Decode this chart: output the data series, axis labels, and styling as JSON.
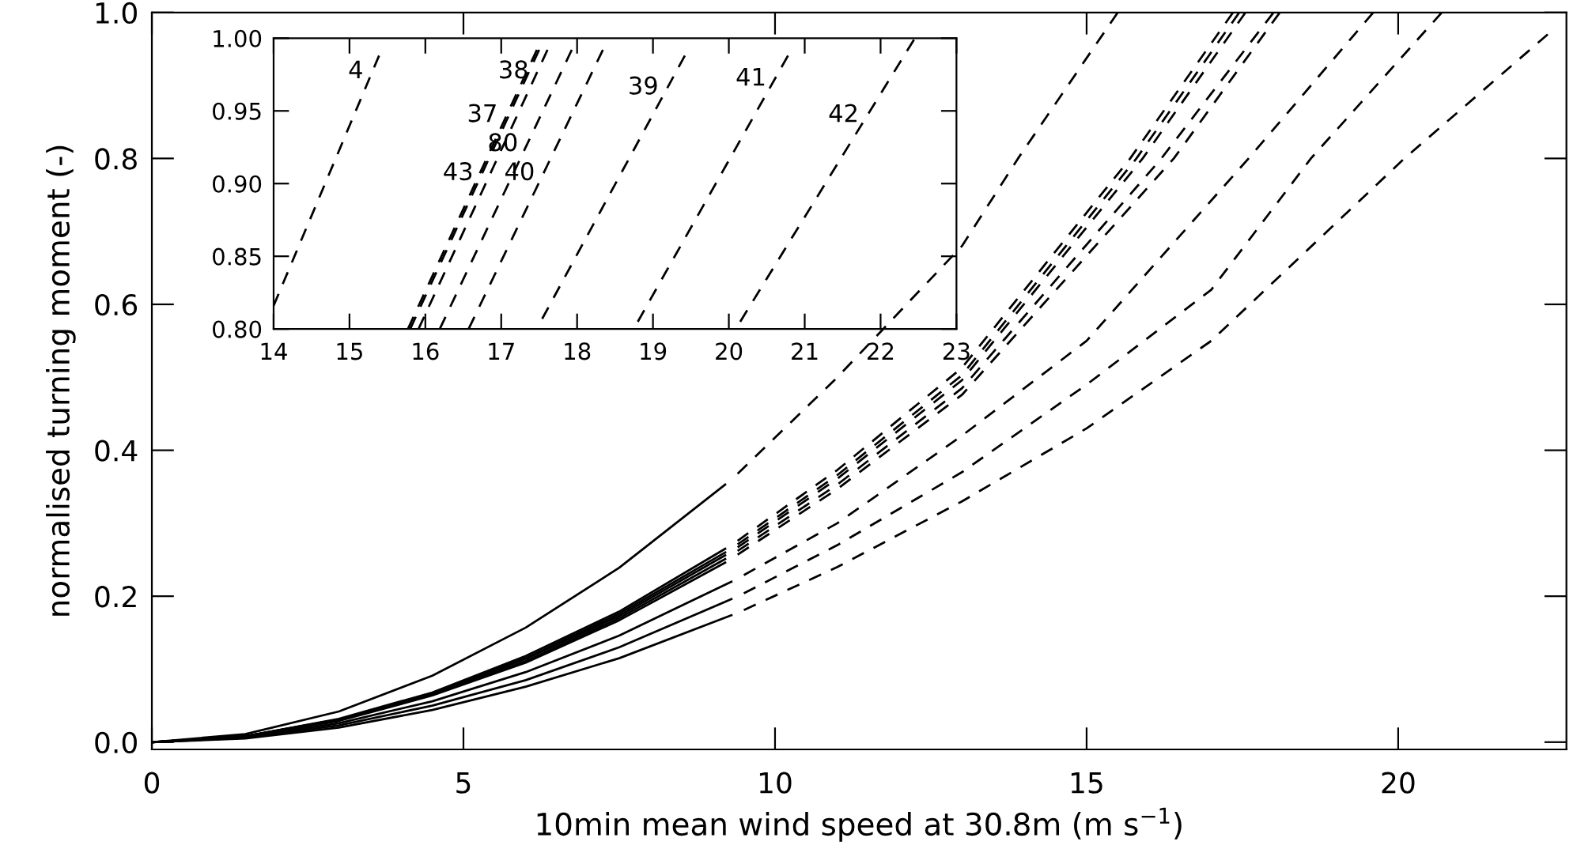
{
  "chart_data": [
    {
      "type": "line",
      "xlabel": "10min mean wind speed at 30.8m (m s$^{−1}$)",
      "ylabel": "normalised turning moment (-)",
      "xlim": [
        0,
        22.7
      ],
      "ylim": [
        -0.01,
        1.0
      ],
      "xticks": [
        0,
        5,
        10,
        15,
        20
      ],
      "yticks": [
        {
          "value": 0.0,
          "label": "0.0"
        },
        {
          "value": 0.2,
          "label": "0.2"
        },
        {
          "value": 0.4,
          "label": "0.4"
        },
        {
          "value": 0.6,
          "label": "0.6"
        },
        {
          "value": 0.8,
          "label": "0.8"
        },
        {
          "value": 1.0,
          "label": "1.0"
        }
      ],
      "tick_labels": [
        "x",
        "y"
      ],
      "series": [
        {
          "type": "line",
          "line_style": "solid",
          "color": "#000000",
          "x": [
            0,
            1.5,
            3,
            4.5,
            6,
            7.5,
            9.2
          ],
          "values": [
            0,
            0.011,
            0.042,
            0.091,
            0.157,
            0.239,
            0.353
          ]
        },
        {
          "type": "line",
          "line_style": "solid",
          "color": "#000000",
          "x": [
            0,
            1.5,
            3,
            4.5,
            6,
            7.5,
            9.2
          ],
          "values": [
            0,
            0.008,
            0.032,
            0.068,
            0.118,
            0.179,
            0.265
          ]
        },
        {
          "type": "line",
          "line_style": "solid",
          "color": "#000000",
          "x": [
            0,
            1.5,
            3,
            4.5,
            6,
            7.5,
            9.2
          ],
          "values": [
            0,
            0.008,
            0.031,
            0.067,
            0.115,
            0.176,
            0.26
          ]
        },
        {
          "type": "line",
          "line_style": "solid",
          "color": "#000000",
          "x": [
            0,
            1.5,
            3,
            4.5,
            6,
            7.5,
            9.2
          ],
          "values": [
            0,
            0.008,
            0.031,
            0.066,
            0.114,
            0.173,
            0.256
          ]
        },
        {
          "type": "line",
          "line_style": "solid",
          "color": "#000000",
          "x": [
            0,
            1.5,
            3,
            4.5,
            6,
            7.5,
            9.2
          ],
          "values": [
            0,
            0.008,
            0.03,
            0.065,
            0.111,
            0.17,
            0.251
          ]
        },
        {
          "type": "line",
          "line_style": "solid",
          "color": "#000000",
          "x": [
            0,
            1.5,
            3,
            4.5,
            6,
            7.5,
            9.2
          ],
          "values": [
            0,
            0.008,
            0.029,
            0.064,
            0.109,
            0.167,
            0.246
          ]
        },
        {
          "type": "line",
          "line_style": "solid",
          "color": "#000000",
          "x": [
            0,
            1.5,
            3,
            4.5,
            6,
            7.5,
            9.3
          ],
          "values": [
            0,
            0.007,
            0.026,
            0.056,
            0.096,
            0.146,
            0.22
          ]
        },
        {
          "type": "line",
          "line_style": "solid",
          "color": "#000000",
          "x": [
            0,
            1.5,
            3,
            4.5,
            6,
            7.5,
            9.3
          ],
          "values": [
            0,
            0.006,
            0.023,
            0.05,
            0.085,
            0.13,
            0.196
          ]
        },
        {
          "type": "line",
          "line_style": "solid",
          "color": "#000000",
          "x": [
            0,
            1.5,
            3,
            4.5,
            6,
            7.5,
            9.3
          ],
          "values": [
            0,
            0.005,
            0.02,
            0.044,
            0.076,
            0.115,
            0.174
          ]
        },
        {
          "type": "line",
          "line_style": "dashed",
          "color": "#000000",
          "x": [
            9.4,
            11,
            13,
            13.9,
            15.5
          ],
          "values": [
            0.368,
            0.5,
            0.68,
            0.8,
            1.0
          ]
        },
        {
          "type": "line",
          "line_style": "dashed",
          "color": "#000000",
          "x": [
            9.4,
            11,
            13,
            15.7,
            17.35
          ],
          "values": [
            0.276,
            0.373,
            0.513,
            0.8,
            1.0
          ]
        },
        {
          "type": "line",
          "line_style": "dashed",
          "color": "#000000",
          "x": [
            9.4,
            11,
            13,
            15.8,
            17.45
          ],
          "values": [
            0.271,
            0.366,
            0.503,
            0.8,
            1.0
          ]
        },
        {
          "type": "line",
          "line_style": "dashed",
          "color": "#000000",
          "x": [
            9.4,
            11,
            13,
            15.9,
            17.55
          ],
          "values": [
            0.267,
            0.361,
            0.496,
            0.8,
            1.0
          ]
        },
        {
          "type": "line",
          "line_style": "dashed",
          "color": "#000000",
          "x": [
            9.4,
            11,
            13,
            16.2,
            18.0
          ],
          "values": [
            0.262,
            0.353,
            0.485,
            0.8,
            1.0
          ]
        },
        {
          "type": "line",
          "line_style": "dashed",
          "color": "#000000",
          "x": [
            9.4,
            11,
            13,
            16.4,
            18.1
          ],
          "values": [
            0.257,
            0.347,
            0.476,
            0.8,
            1.0
          ]
        },
        {
          "type": "line",
          "line_style": "dashed",
          "color": "#000000",
          "x": [
            9.5,
            11,
            13,
            15,
            17.6,
            19.6
          ],
          "values": [
            0.229,
            0.3,
            0.42,
            0.55,
            0.8,
            1.0
          ]
        },
        {
          "type": "line",
          "line_style": "dashed",
          "color": "#000000",
          "x": [
            9.5,
            11,
            13,
            15,
            17,
            18.6,
            20.7
          ],
          "values": [
            0.204,
            0.27,
            0.37,
            0.49,
            0.62,
            0.8,
            1.0
          ]
        },
        {
          "type": "line",
          "line_style": "dashed",
          "color": "#000000",
          "x": [
            9.5,
            11,
            13,
            15,
            17,
            20.1,
            22.4
          ],
          "values": [
            0.181,
            0.24,
            0.33,
            0.43,
            0.55,
            0.8,
            0.97
          ]
        }
      ]
    },
    {
      "type": "line",
      "xlim": [
        14,
        23
      ],
      "ylim": [
        0.8,
        1.0
      ],
      "xticks": [
        14,
        15,
        16,
        17,
        18,
        19,
        20,
        21,
        22,
        23
      ],
      "yticks": [
        {
          "value": 0.8,
          "label": "0.80"
        },
        {
          "value": 0.85,
          "label": "0.85"
        },
        {
          "value": 0.9,
          "label": "0.90"
        },
        {
          "value": 0.95,
          "label": "0.95"
        },
        {
          "value": 1.0,
          "label": "1.00"
        }
      ],
      "tick_labels": [
        "x",
        "y"
      ],
      "series": [
        {
          "type": "line",
          "line_style": "dashed",
          "color": "#000000",
          "x": [
            14.0,
            15.39
          ],
          "values": [
            0.816,
            0.988
          ]
        },
        {
          "type": "line",
          "line_style": "dashed",
          "color": "#000000",
          "x": [
            15.77,
            17.47
          ],
          "values": [
            0.8,
            0.992
          ]
        },
        {
          "type": "line",
          "line_style": "dashed",
          "color": "#000000",
          "x": [
            15.8,
            17.5
          ],
          "values": [
            0.8,
            0.992
          ]
        },
        {
          "type": "line",
          "line_style": "dashed",
          "color": "#000000",
          "x": [
            15.91,
            17.61
          ],
          "values": [
            0.8,
            0.992
          ]
        },
        {
          "type": "line",
          "line_style": "dashed",
          "color": "#000000",
          "x": [
            16.19,
            17.93
          ],
          "values": [
            0.8,
            0.992
          ]
        },
        {
          "type": "line",
          "line_style": "dashed",
          "color": "#000000",
          "x": [
            16.57,
            18.34
          ],
          "values": [
            0.8,
            0.992
          ]
        },
        {
          "type": "line",
          "line_style": "dashed",
          "color": "#000000",
          "x": [
            17.54,
            19.42
          ],
          "values": [
            0.807,
            0.988
          ]
        },
        {
          "type": "line",
          "line_style": "dashed",
          "color": "#000000",
          "x": [
            18.8,
            20.78
          ],
          "values": [
            0.805,
            0.988
          ]
        },
        {
          "type": "line",
          "line_style": "dashed",
          "color": "#000000",
          "x": [
            20.15,
            22.44
          ],
          "values": [
            0.805,
            0.999
          ]
        }
      ],
      "annotations": [
        {
          "text": "4",
          "x": 15.3,
          "y": 0.977
        },
        {
          "text": "38",
          "x": 17.48,
          "y": 0.977
        },
        {
          "text": "37",
          "x": 17.07,
          "y": 0.947
        },
        {
          "text": "80",
          "x": 17.34,
          "y": 0.927
        },
        {
          "text": "43",
          "x": 16.75,
          "y": 0.907
        },
        {
          "text": "40",
          "x": 17.56,
          "y": 0.907
        },
        {
          "text": "39",
          "x": 19.19,
          "y": 0.966
        },
        {
          "text": "41",
          "x": 20.61,
          "y": 0.972
        },
        {
          "text": "42",
          "x": 21.83,
          "y": 0.947
        }
      ]
    }
  ]
}
